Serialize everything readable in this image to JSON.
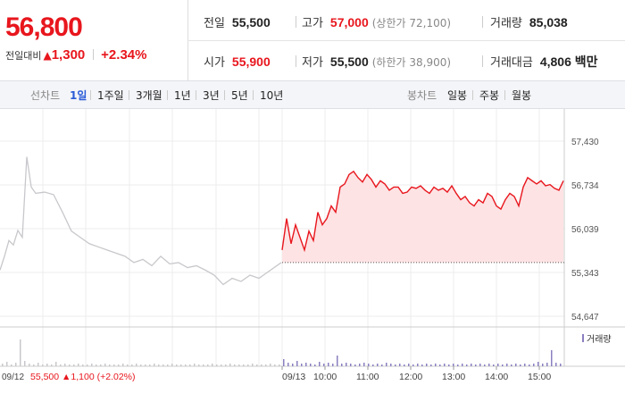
{
  "quote": {
    "price": "56,800",
    "change_label": "전일대비",
    "change_arrow": "▲",
    "change_value": "1,300",
    "change_pct": "+2.34%",
    "prev_close": {
      "label": "전일",
      "value": "55,500"
    },
    "open": {
      "label": "시가",
      "value": "55,900"
    },
    "high": {
      "label": "고가",
      "value": "57,000",
      "sub": "(상한가 72,100)"
    },
    "low": {
      "label": "저가",
      "value": "55,500",
      "sub": "(하한가 38,900)"
    },
    "volume": {
      "label": "거래량",
      "value": "85,038"
    },
    "amount": {
      "label": "거래대금",
      "value": "4,806 백만"
    }
  },
  "toolbar": {
    "line_label": "선차트",
    "line_tabs": [
      "1일",
      "1주일",
      "3개월",
      "1년",
      "3년",
      "5년",
      "10년"
    ],
    "active_tab": "1일",
    "candle_label": "봉차트",
    "candle_tabs": [
      "일봉",
      "주봉",
      "월봉"
    ]
  },
  "colors": {
    "up": "#e8161d",
    "prev_day": "#c8c8cc",
    "volume": "#8b7fc0",
    "fill": "#fde3e4"
  },
  "chart_data": {
    "type": "line",
    "ylim": [
      54647,
      57430
    ],
    "y_ticks": [
      "57,430",
      "56,734",
      "56,039",
      "55,343",
      "54,647"
    ],
    "x_ticks": [
      "09/13",
      "10:00",
      "11:00",
      "12:00",
      "13:00",
      "14:00",
      "15:00"
    ],
    "prev_day_label": "09/12",
    "prev_day_info": {
      "close": "55,500",
      "arrow": "▲",
      "change": "1,100",
      "pct": "(+2.02%)"
    },
    "volume_label": "거래량",
    "series": [
      {
        "date": "09/12",
        "x": [
          0,
          5,
          10,
          15,
          20,
          25,
          30,
          35,
          40,
          50,
          60,
          70,
          80,
          90,
          100,
          110,
          120,
          130,
          140,
          150,
          160,
          170,
          180,
          190,
          200,
          210,
          220,
          230,
          240,
          250,
          260,
          270,
          280,
          290,
          300,
          310,
          315
        ],
        "values": [
          55380,
          55600,
          55850,
          55780,
          56010,
          55900,
          57180,
          56700,
          56600,
          56620,
          56580,
          56300,
          56000,
          55900,
          55800,
          55750,
          55700,
          55650,
          55600,
          55500,
          55550,
          55450,
          55600,
          55480,
          55500,
          55420,
          55450,
          55380,
          55300,
          55150,
          55250,
          55200,
          55300,
          55250,
          55350,
          55450,
          55500
        ]
      },
      {
        "date": "09/13",
        "x": [
          0,
          5,
          10,
          15,
          20,
          25,
          30,
          35,
          40,
          45,
          50,
          55,
          60,
          65,
          70,
          75,
          80,
          85,
          90,
          95,
          100,
          105,
          110,
          115,
          120,
          125,
          130,
          135,
          140,
          145,
          150,
          155,
          160,
          165,
          170,
          175,
          180,
          185,
          190,
          195,
          200,
          205,
          210,
          215,
          220,
          225,
          230,
          235,
          240,
          245,
          250,
          255,
          260,
          265,
          270,
          275,
          280,
          285,
          290,
          295,
          300,
          305,
          310,
          315
        ],
        "values": [
          55700,
          56200,
          55800,
          56100,
          55900,
          55700,
          56000,
          55850,
          56300,
          56100,
          56200,
          56400,
          56300,
          56700,
          56750,
          56900,
          56950,
          56850,
          56780,
          56900,
          56820,
          56700,
          56800,
          56750,
          56650,
          56700,
          56700,
          56600,
          56620,
          56700,
          56680,
          56720,
          56650,
          56600,
          56700,
          56650,
          56680,
          56620,
          56720,
          56600,
          56500,
          56550,
          56450,
          56400,
          56500,
          56450,
          56600,
          56550,
          56400,
          56350,
          56500,
          56600,
          56550,
          56400,
          56700,
          56850,
          56800,
          56750,
          56800,
          56720,
          56740,
          56680,
          56650,
          56800
        ]
      }
    ]
  }
}
